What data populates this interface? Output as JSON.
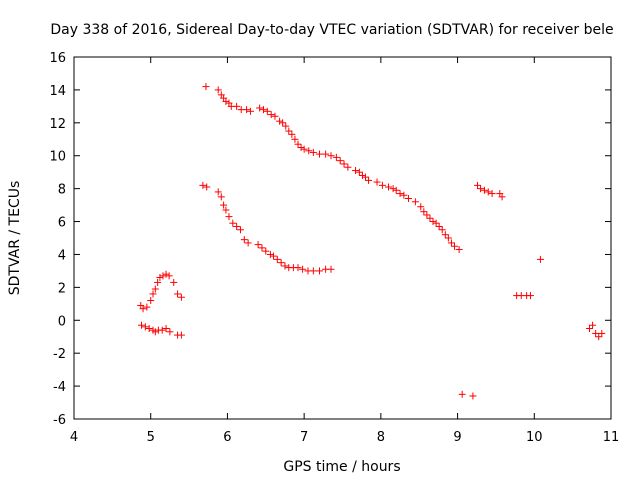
{
  "chart_data": {
    "type": "scatter",
    "title": "Day 338 of 2016, Sidereal Day-to-day VTEC variation (SDTVAR) for receiver bele",
    "xlabel": "GPS time / hours",
    "ylabel": "SDTVAR / TECUs",
    "xlim": [
      4,
      11
    ],
    "ylim": [
      -6,
      16
    ],
    "xticks": [
      4,
      5,
      6,
      7,
      8,
      9,
      10,
      11
    ],
    "yticks": [
      -6,
      -4,
      -2,
      0,
      2,
      4,
      6,
      8,
      10,
      12,
      14,
      16
    ],
    "grid": false,
    "marker": "+",
    "color": "#ff0000",
    "series": [
      {
        "name": "SDTVAR",
        "points": [
          [
            5.72,
            14.2
          ],
          [
            5.88,
            14.0
          ],
          [
            5.92,
            13.7
          ],
          [
            5.95,
            13.5
          ],
          [
            5.98,
            13.3
          ],
          [
            6.02,
            13.2
          ],
          [
            6.05,
            13.0
          ],
          [
            6.12,
            13.0
          ],
          [
            6.18,
            12.8
          ],
          [
            6.25,
            12.8
          ],
          [
            6.3,
            12.7
          ],
          [
            6.42,
            12.9
          ],
          [
            6.47,
            12.8
          ],
          [
            6.52,
            12.7
          ],
          [
            6.57,
            12.5
          ],
          [
            6.62,
            12.4
          ],
          [
            6.68,
            12.1
          ],
          [
            6.72,
            12.0
          ],
          [
            6.76,
            11.8
          ],
          [
            6.8,
            11.5
          ],
          [
            6.84,
            11.3
          ],
          [
            6.88,
            11.0
          ],
          [
            6.92,
            10.7
          ],
          [
            6.96,
            10.5
          ],
          [
            7.0,
            10.4
          ],
          [
            7.06,
            10.3
          ],
          [
            7.12,
            10.2
          ],
          [
            7.2,
            10.1
          ],
          [
            7.28,
            10.1
          ],
          [
            7.35,
            10.0
          ],
          [
            7.42,
            9.9
          ],
          [
            7.47,
            9.7
          ],
          [
            7.52,
            9.5
          ],
          [
            7.57,
            9.3
          ],
          [
            7.67,
            9.1
          ],
          [
            7.72,
            9.0
          ],
          [
            7.76,
            8.8
          ],
          [
            7.8,
            8.7
          ],
          [
            7.84,
            8.5
          ],
          [
            7.95,
            8.4
          ],
          [
            8.02,
            8.2
          ],
          [
            8.1,
            8.1
          ],
          [
            8.16,
            8.0
          ],
          [
            8.2,
            7.9
          ],
          [
            8.25,
            7.7
          ],
          [
            8.3,
            7.6
          ],
          [
            8.36,
            7.4
          ],
          [
            8.45,
            7.2
          ],
          [
            8.52,
            6.9
          ],
          [
            8.56,
            6.6
          ],
          [
            8.6,
            6.4
          ],
          [
            8.64,
            6.2
          ],
          [
            8.68,
            6.0
          ],
          [
            8.72,
            5.9
          ],
          [
            8.76,
            5.7
          ],
          [
            8.8,
            5.5
          ],
          [
            8.84,
            5.2
          ],
          [
            8.88,
            5.0
          ],
          [
            8.92,
            4.7
          ],
          [
            8.96,
            4.5
          ],
          [
            9.02,
            4.3
          ],
          [
            5.68,
            8.2
          ],
          [
            5.73,
            8.1
          ],
          [
            5.88,
            7.8
          ],
          [
            5.92,
            7.5
          ],
          [
            5.95,
            7.0
          ],
          [
            5.98,
            6.7
          ],
          [
            6.02,
            6.3
          ],
          [
            6.07,
            5.9
          ],
          [
            6.12,
            5.7
          ],
          [
            6.17,
            5.5
          ],
          [
            6.22,
            4.9
          ],
          [
            6.27,
            4.7
          ],
          [
            6.4,
            4.6
          ],
          [
            6.45,
            4.4
          ],
          [
            6.5,
            4.2
          ],
          [
            6.56,
            4.0
          ],
          [
            6.6,
            3.9
          ],
          [
            6.65,
            3.7
          ],
          [
            6.7,
            3.5
          ],
          [
            6.75,
            3.3
          ],
          [
            6.8,
            3.2
          ],
          [
            6.86,
            3.2
          ],
          [
            6.92,
            3.2
          ],
          [
            6.98,
            3.1
          ],
          [
            7.05,
            3.0
          ],
          [
            7.12,
            3.0
          ],
          [
            7.2,
            3.0
          ],
          [
            7.28,
            3.1
          ],
          [
            7.35,
            3.1
          ],
          [
            4.87,
            0.9
          ],
          [
            4.9,
            0.7
          ],
          [
            4.95,
            0.8
          ],
          [
            5.0,
            1.2
          ],
          [
            5.03,
            1.6
          ],
          [
            5.06,
            1.9
          ],
          [
            5.09,
            2.3
          ],
          [
            5.12,
            2.6
          ],
          [
            5.16,
            2.7
          ],
          [
            5.2,
            2.8
          ],
          [
            5.24,
            2.7
          ],
          [
            5.3,
            2.3
          ],
          [
            5.35,
            1.6
          ],
          [
            5.4,
            1.4
          ],
          [
            4.88,
            -0.3
          ],
          [
            4.93,
            -0.4
          ],
          [
            4.98,
            -0.5
          ],
          [
            5.03,
            -0.6
          ],
          [
            5.06,
            -0.7
          ],
          [
            5.1,
            -0.6
          ],
          [
            5.15,
            -0.6
          ],
          [
            5.2,
            -0.5
          ],
          [
            5.25,
            -0.7
          ],
          [
            5.35,
            -0.9
          ],
          [
            5.4,
            -0.9
          ],
          [
            9.06,
            -4.5
          ],
          [
            9.2,
            -4.6
          ],
          [
            9.26,
            8.2
          ],
          [
            9.3,
            8.0
          ],
          [
            9.35,
            7.9
          ],
          [
            9.4,
            7.8
          ],
          [
            9.45,
            7.7
          ],
          [
            9.55,
            7.7
          ],
          [
            9.58,
            7.5
          ],
          [
            9.77,
            1.5
          ],
          [
            9.83,
            1.5
          ],
          [
            9.9,
            1.5
          ],
          [
            9.95,
            1.5
          ],
          [
            10.08,
            3.7
          ],
          [
            10.72,
            -0.5
          ],
          [
            10.76,
            -0.3
          ],
          [
            10.8,
            -0.8
          ],
          [
            10.84,
            -1.0
          ],
          [
            10.88,
            -0.8
          ]
        ]
      }
    ]
  }
}
